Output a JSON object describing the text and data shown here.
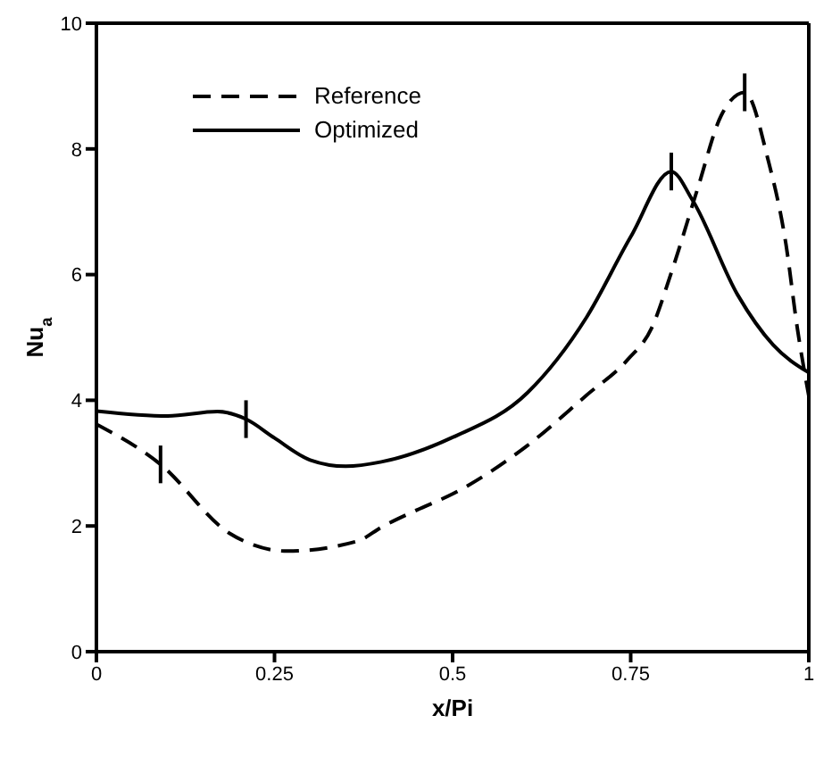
{
  "chart_data": {
    "type": "line",
    "xlabel": "x/Pi",
    "ylabel": "Nu$_{a}$",
    "xlim": [
      0,
      1
    ],
    "ylim": [
      0,
      10
    ],
    "xticks": [
      0,
      0.25,
      0.5,
      0.75,
      1
    ],
    "yticks": [
      0,
      2,
      4,
      6,
      8,
      10
    ],
    "legend": "top left",
    "marker": "none",
    "series": [
      {
        "name": "Reference",
        "color": "#000000",
        "line_style": "dashed",
        "x": [
          0,
          0.09,
          0.186,
          0.268,
          0.367,
          0.4,
          0.449,
          0.5,
          0.605,
          0.688,
          0.746,
          0.779,
          0.807,
          0.844,
          0.877,
          0.91,
          0.943,
          0.968,
          0.984,
          1
        ],
        "values": [
          3.62,
          2.98,
          1.89,
          1.6,
          1.76,
          1.98,
          2.25,
          2.51,
          3.28,
          4.08,
          4.65,
          5.14,
          6.03,
          7.37,
          8.53,
          8.9,
          7.82,
          6.48,
          5.14,
          4.07
        ],
        "errors": [
          null,
          0.3,
          null,
          null,
          null,
          null,
          null,
          null,
          null,
          null,
          null,
          null,
          null,
          null,
          null,
          0.3,
          null,
          null,
          null,
          null
        ]
      },
      {
        "name": "Optimized",
        "color": "#000000",
        "line_style": "solid",
        "x": [
          0,
          0.1,
          0.17,
          0.21,
          0.25,
          0.3,
          0.35,
          0.4,
          0.5,
          0.605,
          0.688,
          0.75,
          0.807,
          0.837,
          0.9,
          0.95,
          1
        ],
        "values": [
          3.83,
          3.75,
          3.82,
          3.7,
          3.4,
          3.05,
          2.95,
          3.02,
          3.41,
          4.12,
          5.32,
          6.6,
          7.64,
          7.18,
          5.68,
          4.88,
          4.44
        ],
        "errors": [
          null,
          null,
          null,
          0.3,
          null,
          null,
          null,
          null,
          null,
          null,
          null,
          null,
          0.3,
          null,
          null,
          null,
          null
        ]
      }
    ]
  }
}
